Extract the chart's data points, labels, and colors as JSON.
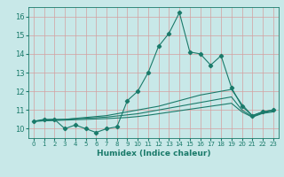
{
  "xlabel": "Humidex (Indice chaleur)",
  "xlim": [
    -0.5,
    23.5
  ],
  "ylim": [
    9.5,
    16.5
  ],
  "yticks": [
    10,
    11,
    12,
    13,
    14,
    15,
    16
  ],
  "xticks": [
    0,
    1,
    2,
    3,
    4,
    5,
    6,
    7,
    8,
    9,
    10,
    11,
    12,
    13,
    14,
    15,
    16,
    17,
    18,
    19,
    20,
    21,
    22,
    23
  ],
  "bg_color": "#c8e8e8",
  "grid_color": "#d4a0a0",
  "line_color": "#1a7a6a",
  "line1_x": [
    0,
    1,
    2,
    3,
    4,
    5,
    6,
    7,
    8,
    9,
    10,
    11,
    12,
    13,
    14,
    15,
    16,
    17,
    18,
    19,
    20,
    21,
    22,
    23
  ],
  "line1_y": [
    10.4,
    10.5,
    10.5,
    10.0,
    10.2,
    10.0,
    9.8,
    10.0,
    10.1,
    11.5,
    12.0,
    13.0,
    14.4,
    15.1,
    16.2,
    14.1,
    14.0,
    13.4,
    13.9,
    12.2,
    11.2,
    10.7,
    10.9,
    11.0
  ],
  "line2_x": [
    0,
    1,
    2,
    3,
    4,
    5,
    6,
    7,
    8,
    9,
    10,
    11,
    12,
    13,
    14,
    15,
    16,
    17,
    18,
    19,
    20,
    21,
    22,
    23
  ],
  "line2_y": [
    10.4,
    10.45,
    10.5,
    10.5,
    10.55,
    10.6,
    10.65,
    10.7,
    10.8,
    10.9,
    11.0,
    11.1,
    11.2,
    11.35,
    11.5,
    11.65,
    11.8,
    11.9,
    12.0,
    12.1,
    11.3,
    10.7,
    10.9,
    11.0
  ],
  "line3_x": [
    0,
    1,
    2,
    3,
    4,
    5,
    6,
    7,
    8,
    9,
    10,
    11,
    12,
    13,
    14,
    15,
    16,
    17,
    18,
    19,
    20,
    21,
    22,
    23
  ],
  "line3_y": [
    10.4,
    10.43,
    10.46,
    10.5,
    10.53,
    10.56,
    10.59,
    10.62,
    10.68,
    10.74,
    10.8,
    10.9,
    11.0,
    11.1,
    11.2,
    11.3,
    11.4,
    11.5,
    11.6,
    11.7,
    11.0,
    10.65,
    10.85,
    10.95
  ],
  "line4_x": [
    0,
    1,
    2,
    3,
    4,
    5,
    6,
    7,
    8,
    9,
    10,
    11,
    12,
    13,
    14,
    15,
    16,
    17,
    18,
    19,
    20,
    21,
    22,
    23
  ],
  "line4_y": [
    10.4,
    10.42,
    10.44,
    10.46,
    10.48,
    10.5,
    10.52,
    10.54,
    10.57,
    10.6,
    10.65,
    10.72,
    10.8,
    10.88,
    10.96,
    11.04,
    11.12,
    11.2,
    11.28,
    11.36,
    10.9,
    10.62,
    10.82,
    10.9
  ]
}
